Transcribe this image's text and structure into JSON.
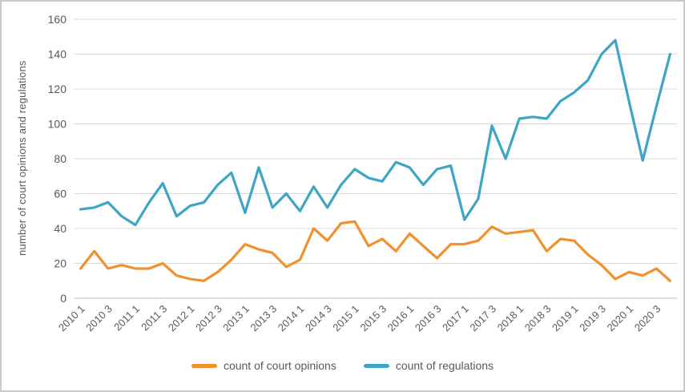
{
  "chart_data": {
    "type": "line",
    "title": "",
    "xlabel": "",
    "ylabel": "number of court opinions and regulations",
    "ylim": [
      0,
      160
    ],
    "ytick_step": 20,
    "grid": true,
    "legend_position": "bottom",
    "colors": {
      "grid": "#d9d9d9",
      "axis": "#bfbfbf",
      "text": "#595959"
    },
    "categories": [
      "2010 1",
      "2010 2",
      "2010 3",
      "2010 4",
      "2011 1",
      "2011 2",
      "2011 3",
      "2011 4",
      "2012 1",
      "2012 2",
      "2012 3",
      "2012 4",
      "2013 1",
      "2013 2",
      "2013 3",
      "2013 4",
      "2014 1",
      "2014 2",
      "2014 3",
      "2014 4",
      "2015 1",
      "2015 2",
      "2015 3",
      "2015 4",
      "2016 1",
      "2016 2",
      "2016 3",
      "2016 4",
      "2017 1",
      "2017 2",
      "2017 3",
      "2017 4",
      "2018 1",
      "2018 2",
      "2018 3",
      "2018 4",
      "2019 1",
      "2019 2",
      "2019 3",
      "2019 4",
      "2020 1",
      "2020 2",
      "2020 3",
      "2020 4"
    ],
    "xtick_labels": [
      "2010 1",
      "2010 3",
      "2011 1",
      "2011 3",
      "2012 1",
      "2012 3",
      "2013 1",
      "2013 3",
      "2014 1",
      "2014 3",
      "2015 1",
      "2015 3",
      "2016 1",
      "2016 3",
      "2017 1",
      "2017 3",
      "2018 1",
      "2018 3",
      "2019 1",
      "2019 3",
      "2020 1",
      "2020 3"
    ],
    "xtick_every": 2,
    "series": [
      {
        "name": "count of court opinions",
        "color": "#f1912d",
        "values": [
          17,
          27,
          17,
          19,
          17,
          17,
          20,
          13,
          11,
          10,
          15,
          22,
          31,
          28,
          26,
          18,
          22,
          40,
          33,
          43,
          44,
          30,
          34,
          27,
          37,
          30,
          23,
          31,
          31,
          33,
          41,
          37,
          38,
          39,
          27,
          34,
          33,
          25,
          19,
          11,
          15,
          13,
          17,
          10
        ]
      },
      {
        "name": "count of regulations",
        "color": "#3fa5c4",
        "values": [
          51,
          52,
          55,
          47,
          42,
          55,
          66,
          47,
          53,
          55,
          65,
          72,
          49,
          75,
          52,
          60,
          50,
          64,
          52,
          65,
          74,
          69,
          67,
          78,
          75,
          65,
          74,
          76,
          45,
          57,
          99,
          80,
          103,
          104,
          103,
          113,
          118,
          125,
          140,
          148,
          113,
          79,
          110,
          140
        ]
      }
    ]
  }
}
